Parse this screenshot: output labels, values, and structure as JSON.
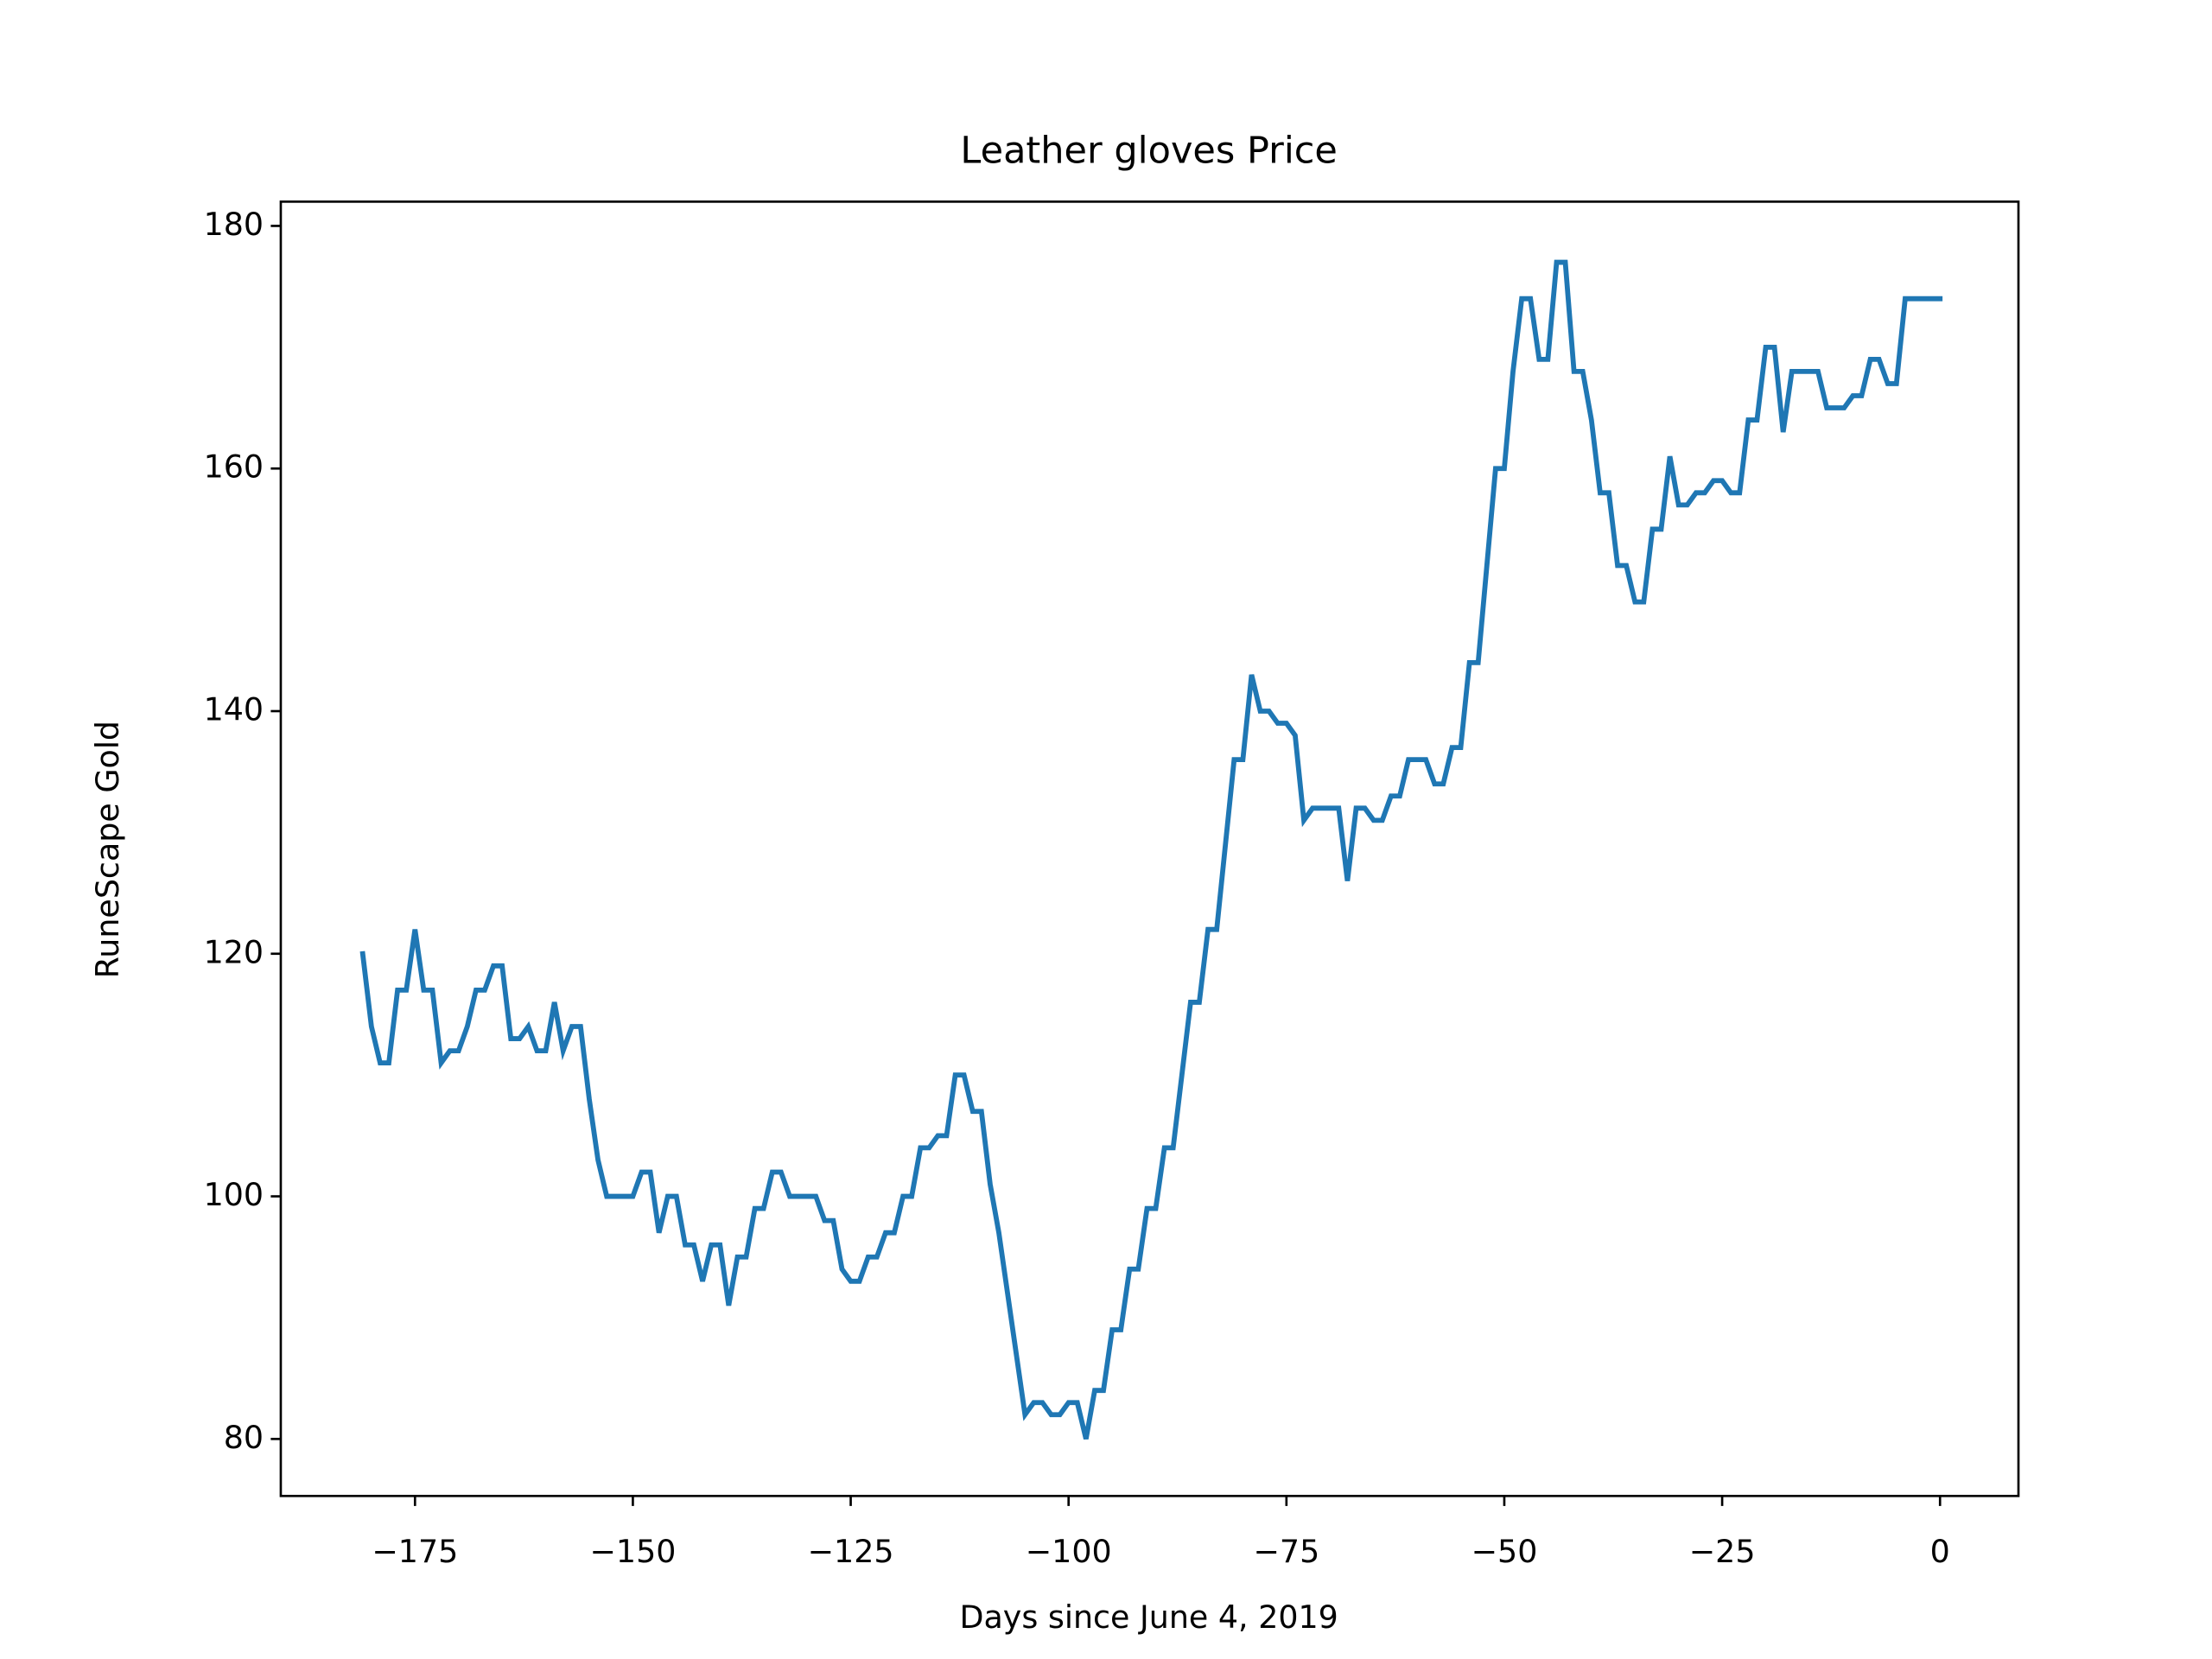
{
  "chart_data": {
    "type": "line",
    "title": "Leather gloves Price",
    "x_label": "Days since June 4, 2019",
    "y_label": "RuneScape Gold",
    "x": [
      -181,
      -180,
      -179,
      -178,
      -177,
      -176,
      -175,
      -174,
      -173,
      -172,
      -171,
      -170,
      -169,
      -168,
      -167,
      -166,
      -165,
      -164,
      -163,
      -162,
      -161,
      -160,
      -159,
      -158,
      -157,
      -156,
      -155,
      -154,
      -153,
      -152,
      -151,
      -150,
      -149,
      -148,
      -147,
      -146,
      -145,
      -144,
      -143,
      -142,
      -141,
      -140,
      -139,
      -138,
      -137,
      -136,
      -135,
      -134,
      -133,
      -132,
      -131,
      -130,
      -129,
      -128,
      -127,
      -126,
      -125,
      -124,
      -123,
      -122,
      -121,
      -120,
      -119,
      -118,
      -117,
      -116,
      -115,
      -114,
      -113,
      -112,
      -111,
      -110,
      -109,
      -108,
      -107,
      -106,
      -105,
      -104,
      -103,
      -102,
      -101,
      -100,
      -99,
      -98,
      -97,
      -96,
      -95,
      -94,
      -93,
      -92,
      -91,
      -90,
      -89,
      -88,
      -87,
      -86,
      -85,
      -84,
      -83,
      -82,
      -81,
      -80,
      -79,
      -78,
      -77,
      -76,
      -75,
      -74,
      -73,
      -72,
      -71,
      -70,
      -69,
      -68,
      -67,
      -66,
      -65,
      -64,
      -63,
      -62,
      -61,
      -60,
      -59,
      -58,
      -57,
      -56,
      -55,
      -54,
      -53,
      -52,
      -51,
      -50,
      -49,
      -48,
      -47,
      -46,
      -45,
      -44,
      -43,
      -42,
      -41,
      -40,
      -39,
      -38,
      -37,
      -36,
      -35,
      -34,
      -33,
      -32,
      -31,
      -30,
      -29,
      -28,
      -27,
      -26,
      -25,
      -24,
      -23,
      -22,
      -21,
      -20,
      -19,
      -18,
      -17,
      -16,
      -15,
      -14,
      -13,
      -12,
      -11,
      -10,
      -9,
      -8,
      -7,
      -6,
      -5,
      -4,
      -3,
      -2,
      -1,
      0
    ],
    "series": [
      {
        "name": "Leather gloves",
        "color": "#1f77b4",
        "values": [
          120,
          114,
          111,
          111,
          117,
          117,
          122,
          117,
          117,
          111,
          112,
          112,
          114,
          117,
          117,
          119,
          119,
          113,
          113,
          114,
          112,
          112,
          116,
          112,
          114,
          114,
          108,
          103,
          100,
          100,
          100,
          100,
          102,
          102,
          97,
          100,
          100,
          96,
          96,
          93,
          96,
          96,
          91,
          95,
          95,
          99,
          99,
          102,
          102,
          100,
          100,
          100,
          100,
          98,
          98,
          94,
          93,
          93,
          95,
          95,
          97,
          97,
          100,
          100,
          104,
          104,
          105,
          105,
          110,
          110,
          107,
          107,
          101,
          97,
          92,
          87,
          82,
          83,
          83,
          82,
          82,
          83,
          83,
          80,
          84,
          84,
          89,
          89,
          94,
          94,
          99,
          99,
          104,
          104,
          110,
          116,
          116,
          122,
          122,
          129,
          136,
          136,
          143,
          140,
          140,
          139,
          139,
          138,
          131,
          132,
          132,
          132,
          132,
          126,
          132,
          132,
          131,
          131,
          133,
          133,
          136,
          136,
          136,
          134,
          134,
          137,
          137,
          144,
          144,
          152,
          160,
          160,
          168,
          174,
          174,
          169,
          169,
          177,
          177,
          168,
          168,
          164,
          158,
          158,
          152,
          152,
          149,
          149,
          155,
          155,
          161,
          157,
          157,
          158,
          158,
          159,
          159,
          158,
          158,
          164,
          164,
          170,
          170,
          163,
          168,
          168,
          168,
          168,
          165,
          165,
          165,
          166,
          166,
          169,
          169,
          167,
          167,
          174,
          174,
          174,
          174,
          174
        ]
      }
    ],
    "xlim": [
      -190.4,
      9.0
    ],
    "ylim": [
      75.3,
      182.0
    ],
    "xticks": [
      {
        "value": -175,
        "label": "−175"
      },
      {
        "value": -150,
        "label": "−150"
      },
      {
        "value": -125,
        "label": "−125"
      },
      {
        "value": -100,
        "label": "−100"
      },
      {
        "value": -75,
        "label": "−75"
      },
      {
        "value": -50,
        "label": "−50"
      },
      {
        "value": -25,
        "label": "−25"
      },
      0
    ],
    "yticks": [
      80,
      100,
      120,
      140,
      160,
      180
    ],
    "grid": false
  }
}
